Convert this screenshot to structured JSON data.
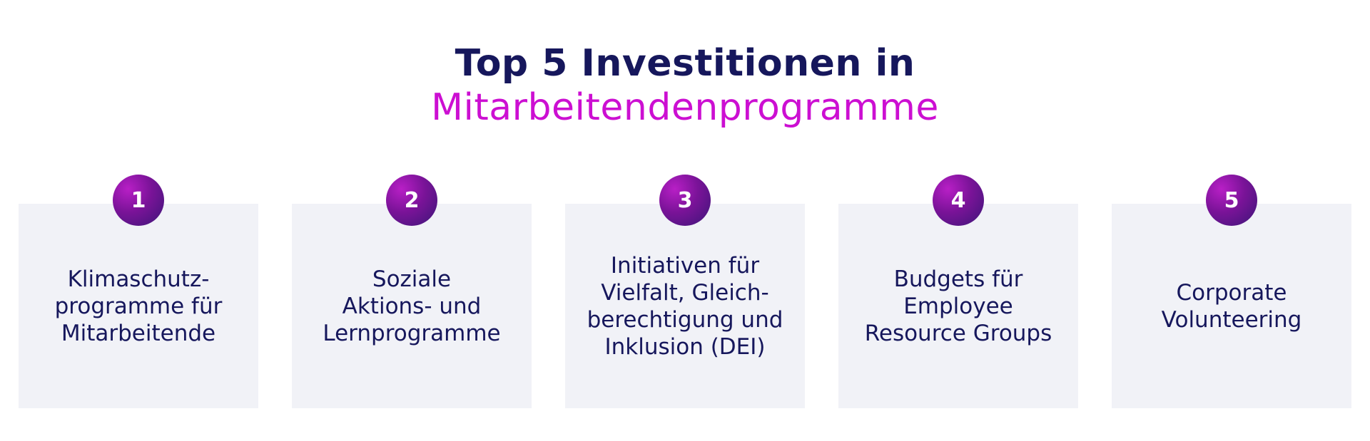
{
  "title": {
    "line1": "Top 5 Investitionen in",
    "line2": "Mitarbeitendenprogramme"
  },
  "colors": {
    "title_dark": "#16175c",
    "title_accent": "#cc0fd2",
    "card_bg": "#f1f2f7",
    "badge": "#7a1398"
  },
  "items": [
    {
      "number": "1",
      "text": "Klimaschutz-\nprogramme für\nMitarbeitende"
    },
    {
      "number": "2",
      "text": "Soziale\nAktions- und\nLernprogramme"
    },
    {
      "number": "3",
      "text": "Initiativen für\nVielfalt, Gleich-\nberechtigung und\nInklusion (DEI)"
    },
    {
      "number": "4",
      "text": "Budgets für\nEmployee\nResource Groups"
    },
    {
      "number": "5",
      "text": "Corporate\nVolunteering"
    }
  ]
}
